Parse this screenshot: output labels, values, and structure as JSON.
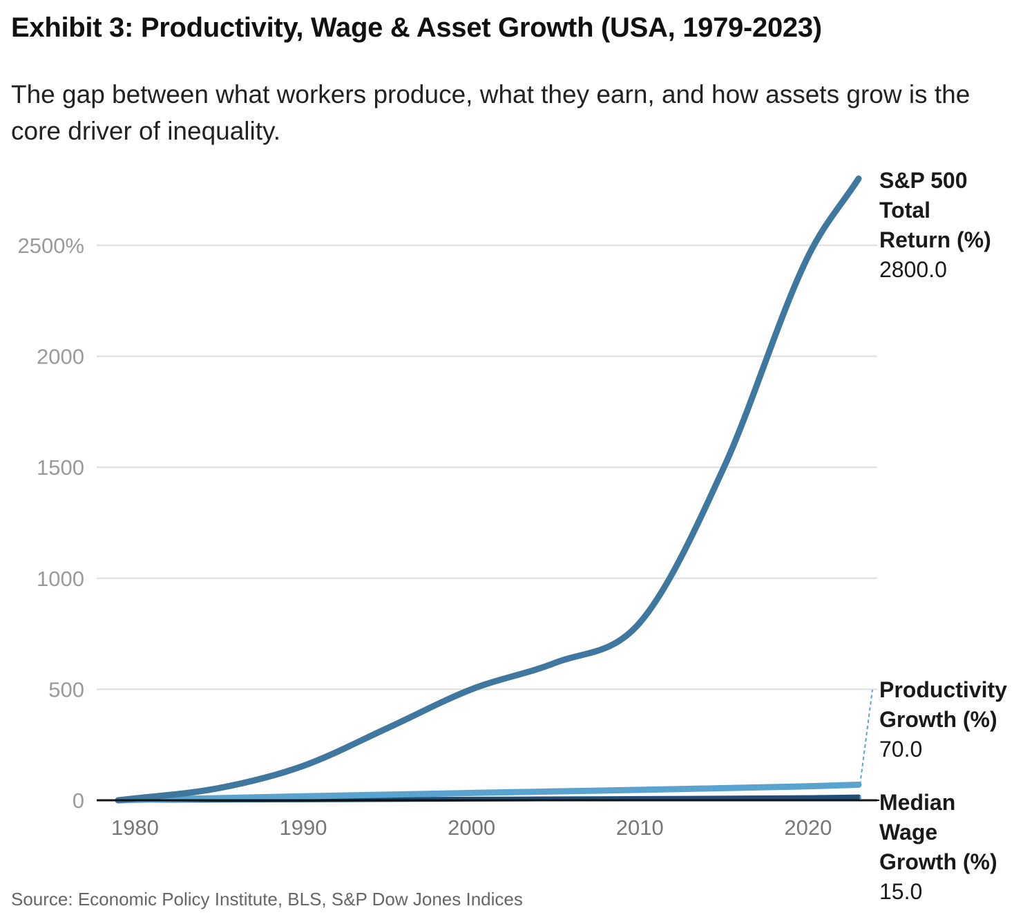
{
  "title": "Exhibit 3: Productivity, Wage & Asset Growth (USA, 1979-2023)",
  "subtitle": "The gap between what workers produce, what they earn, and how assets grow is the core driver of inequality.",
  "source": "Source: Economic Policy Institute, BLS, S&P Dow Jones Indices",
  "chart_data": {
    "type": "line",
    "title": "Exhibit 3: Productivity, Wage & Asset Growth (USA, 1979-2023)",
    "xlabel": "",
    "ylabel": "",
    "xlim": [
      1979,
      2023
    ],
    "ylim": [
      0,
      2800
    ],
    "x_ticks": [
      1980,
      1990,
      2000,
      2010,
      2020
    ],
    "y_ticks": [
      0,
      500,
      1000,
      1500,
      2000,
      2500
    ],
    "y_tick_labels": [
      "0",
      "500",
      "1000",
      "1500",
      "2000",
      "2500%"
    ],
    "grid": true,
    "legend": "direct-labels-right",
    "series": [
      {
        "name": "S&P 500 Total Return (%)",
        "label_lines": [
          "S&P 500",
          "Total",
          "Return (%)"
        ],
        "end_value_label": "2800.0",
        "color": "#3f779e",
        "x": [
          1979,
          1985,
          1990,
          1995,
          2000,
          2005,
          2010,
          2015,
          2020,
          2023
        ],
        "values": [
          0,
          55,
          155,
          325,
          500,
          620,
          800,
          1500,
          2450,
          2800
        ]
      },
      {
        "name": "Productivity Growth (%)",
        "label_lines": [
          "Productivity",
          "Growth (%)"
        ],
        "end_value_label": "70.0",
        "color": "#5ba3cf",
        "x": [
          1979,
          1990,
          2000,
          2010,
          2020,
          2023
        ],
        "values": [
          0,
          18,
          33,
          47,
          63,
          70
        ]
      },
      {
        "name": "Median Wage Growth (%)",
        "label_lines": [
          "Median",
          "Wage",
          "Growth (%)"
        ],
        "end_value_label": "15.0",
        "color": "#1f4e79",
        "x": [
          1979,
          1990,
          2000,
          2010,
          2020,
          2023
        ],
        "values": [
          0,
          2,
          5,
          8,
          12,
          15
        ]
      }
    ]
  }
}
